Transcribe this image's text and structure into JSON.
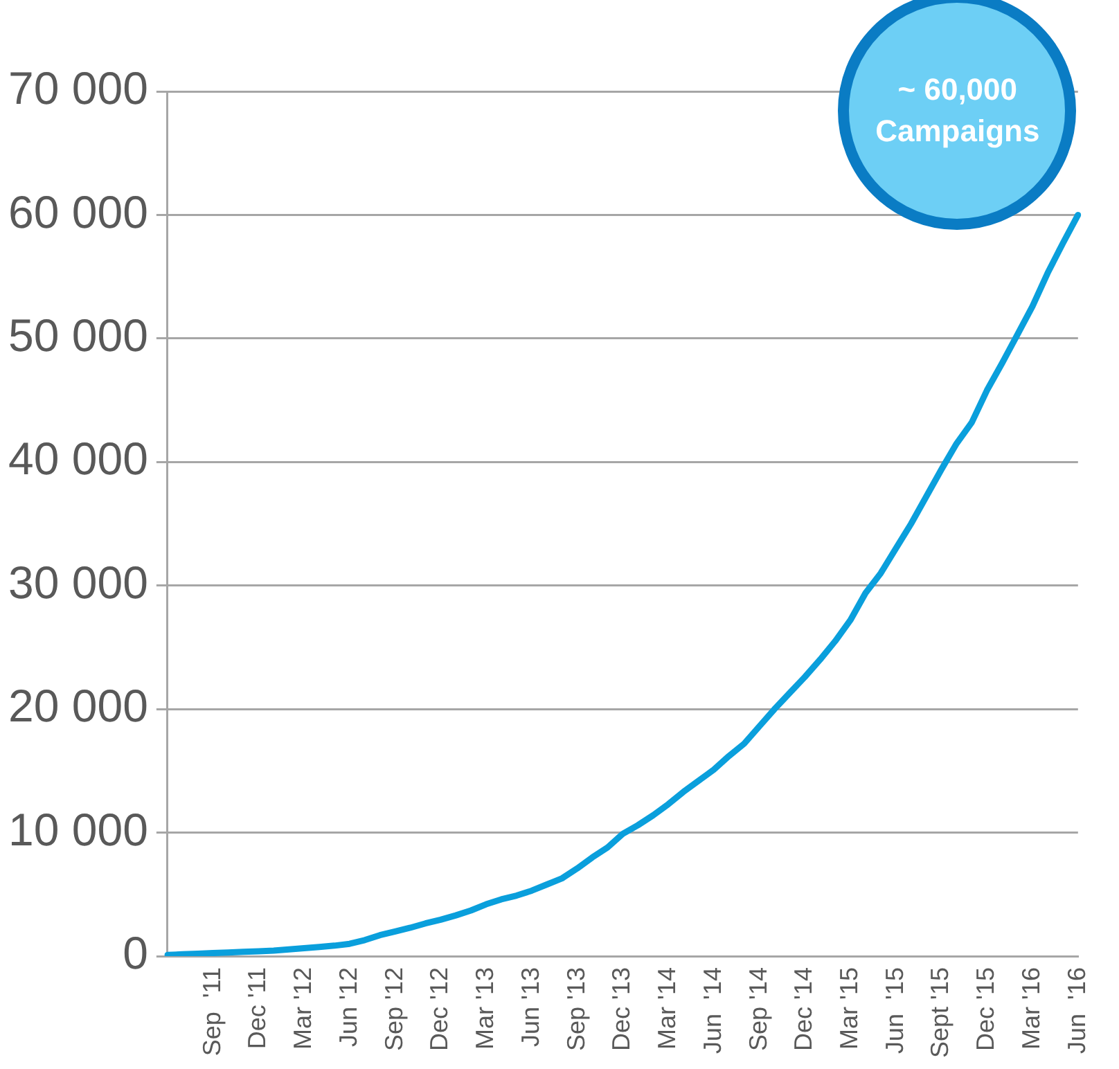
{
  "chart_data": {
    "type": "line",
    "categories": [
      null,
      null,
      null,
      "Sep  '11",
      null,
      null,
      "Dec '11",
      null,
      null,
      "Mar '12",
      null,
      null,
      "Jun '12",
      null,
      null,
      "Sep '12",
      null,
      null,
      "Dec '12",
      null,
      null,
      "Mar '13",
      null,
      null,
      "Jun '13",
      null,
      null,
      "Sep '13",
      null,
      null,
      "Dec '13",
      null,
      null,
      "Mar '14",
      null,
      null,
      "Jun  '14",
      null,
      null,
      "Sep '14",
      null,
      null,
      "Dec '14",
      null,
      null,
      "Mar '15",
      null,
      null,
      "Jun  '15",
      null,
      null,
      "Sept '15",
      null,
      null,
      "Dec '15",
      null,
      null,
      "Mar '16",
      null,
      null,
      "Jun  '16"
    ],
    "series": [
      {
        "color": "#0a9fdc",
        "values": [
          100,
          150,
          200,
          250,
          300,
          350,
          400,
          450,
          550,
          650,
          750,
          850,
          1000,
          1300,
          1700,
          2000,
          2300,
          2650,
          2950,
          3300,
          3700,
          4200,
          4600,
          4900,
          5300,
          5800,
          6300,
          7100,
          8000,
          8800,
          9900,
          10600,
          11400,
          12300,
          13300,
          14200,
          15100,
          16200,
          17200,
          18600,
          20000,
          21300,
          22600,
          24000,
          25500,
          27200,
          29400,
          31000,
          33000,
          35000,
          37200,
          39400,
          41500,
          43200,
          45800,
          48000,
          50300,
          52600,
          55300,
          57700,
          60000
        ]
      }
    ],
    "ylim": [
      0,
      70000
    ],
    "yticks": [
      {
        "value": 0,
        "label": "0"
      },
      {
        "value": 10000,
        "label": "10 000"
      },
      {
        "value": 20000,
        "label": "20 000"
      },
      {
        "value": 30000,
        "label": "30 000"
      },
      {
        "value": 40000,
        "label": "40 000"
      },
      {
        "value": 50000,
        "label": "50 000"
      },
      {
        "value": 60000,
        "label": "60 000"
      },
      {
        "value": 70000,
        "label": "70 000"
      }
    ],
    "grid": "y",
    "marker": "none",
    "line_style": "solid",
    "annotations": [
      {
        "text": "~ 60,000 Campaigns",
        "x": "Jun  '16",
        "y": 60000
      }
    ]
  }
}
